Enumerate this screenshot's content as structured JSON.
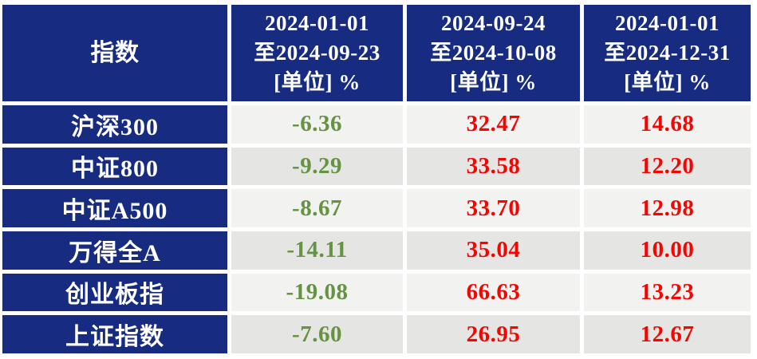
{
  "colors": {
    "header_bg": "#172b80",
    "header_text": "#ffffff",
    "row_light_bg": "#f2f2f0",
    "row_dark_bg": "#e5e5e3",
    "negative_value": "#649341",
    "positive_value": "#f70400",
    "page_bg": "#ffffff"
  },
  "table": {
    "index_header": "指数",
    "period_headers": [
      {
        "line1": "2024-01-01",
        "line2": "至2024-09-23",
        "line3": "[单位] %"
      },
      {
        "line1": "2024-09-24",
        "line2": "至2024-10-08",
        "line3": "[单位] %"
      },
      {
        "line1": "2024-01-01",
        "line2": "至2024-12-31",
        "line3": "[单位] %"
      }
    ],
    "rows": [
      {
        "index_name": "沪深300",
        "values": [
          "-6.36",
          "32.47",
          "14.68"
        ]
      },
      {
        "index_name": "中证800",
        "values": [
          "-9.29",
          "33.58",
          "12.20"
        ]
      },
      {
        "index_name": "中证A500",
        "values": [
          "-8.67",
          "33.70",
          "12.98"
        ]
      },
      {
        "index_name": "万得全A",
        "values": [
          "-14.11",
          "35.04",
          "10.00"
        ]
      },
      {
        "index_name": "创业板指",
        "values": [
          "-19.08",
          "66.63",
          "13.23"
        ]
      },
      {
        "index_name": "上证指数",
        "values": [
          "-7.60",
          "26.95",
          "12.67"
        ]
      }
    ]
  },
  "chart_data": {
    "type": "table",
    "title": "",
    "columns": [
      "指数",
      "2024-01-01至2024-09-23 [单位] %",
      "2024-09-24至2024-10-08 [单位] %",
      "2024-01-01至2024-12-31 [单位] %"
    ],
    "rows": [
      [
        "沪深300",
        -6.36,
        32.47,
        14.68
      ],
      [
        "中证800",
        -9.29,
        33.58,
        12.2
      ],
      [
        "中证A500",
        -8.67,
        33.7,
        12.98
      ],
      [
        "万得全A",
        -14.11,
        35.04,
        10.0
      ],
      [
        "创业板指",
        -19.08,
        66.63,
        13.23
      ],
      [
        "上证指数",
        -7.6,
        26.95,
        12.67
      ]
    ],
    "layout": {
      "value_color_rule": "negative values green, positive values red",
      "header_style": "navy background, white bold serif text",
      "row_striping": "alternating light gray / gray starting light"
    }
  }
}
